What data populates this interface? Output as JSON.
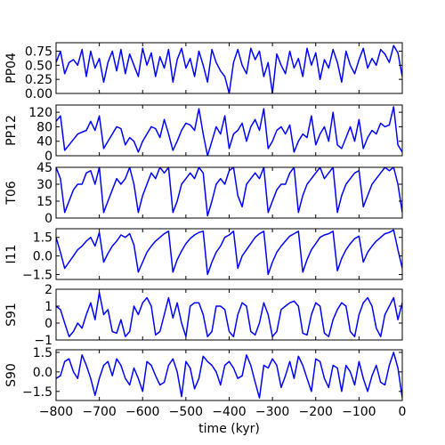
{
  "chart_data": {
    "type": "line",
    "xlabel": "time (kyr)",
    "xlim": [
      -800,
      0
    ],
    "xticks": [
      -800,
      -700,
      -600,
      -500,
      -400,
      -300,
      -200,
      -100,
      0
    ],
    "xtick_labels": [
      "−800",
      "−700",
      "−600",
      "−500",
      "−400",
      "−300",
      "−200",
      "−100",
      "0"
    ],
    "line_color": "#0000ff",
    "grid": false,
    "panels": [
      {
        "ylabel": "PP04",
        "ylim": [
          0,
          0.9
        ],
        "yticks": [
          0,
          0.25,
          0.5,
          0.75
        ],
        "ytick_labels": [
          "0.00",
          "0.25",
          "0.50",
          "0.75"
        ],
        "x": [
          -800,
          -790,
          -780,
          -770,
          -760,
          -750,
          -740,
          -730,
          -720,
          -710,
          -700,
          -690,
          -680,
          -670,
          -660,
          -650,
          -640,
          -630,
          -620,
          -610,
          -600,
          -590,
          -580,
          -570,
          -560,
          -550,
          -540,
          -530,
          -520,
          -510,
          -500,
          -490,
          -480,
          -470,
          -460,
          -450,
          -440,
          -430,
          -420,
          -410,
          -400,
          -390,
          -380,
          -370,
          -360,
          -350,
          -340,
          -330,
          -320,
          -310,
          -300,
          -290,
          -280,
          -270,
          -260,
          -250,
          -240,
          -230,
          -220,
          -210,
          -200,
          -190,
          -180,
          -170,
          -160,
          -150,
          -140,
          -130,
          -120,
          -110,
          -100,
          -90,
          -80,
          -70,
          -60,
          -50,
          -40,
          -30,
          -20,
          -10,
          0
        ],
        "y": [
          0.55,
          0.75,
          0.35,
          0.55,
          0.6,
          0.5,
          0.78,
          0.3,
          0.75,
          0.45,
          0.62,
          0.2,
          0.55,
          0.75,
          0.4,
          0.78,
          0.35,
          0.7,
          0.5,
          0.3,
          0.8,
          0.5,
          0.72,
          0.3,
          0.65,
          0.45,
          0.78,
          0.2,
          0.6,
          0.8,
          0.45,
          0.62,
          0.3,
          0.75,
          0.5,
          0.2,
          0.78,
          0.55,
          0.4,
          0.3,
          0.0,
          0.55,
          0.78,
          0.5,
          0.35,
          0.8,
          0.6,
          0.75,
          0.3,
          0.55,
          0.0,
          0.7,
          0.5,
          0.35,
          0.75,
          0.45,
          0.62,
          0.3,
          0.8,
          0.5,
          0.72,
          0.25,
          0.6,
          0.45,
          0.78,
          0.55,
          0.2,
          0.75,
          0.5,
          0.35,
          0.6,
          0.8,
          0.45,
          0.62,
          0.5,
          0.78,
          0.7,
          0.55,
          0.85,
          0.72,
          0.3
        ]
      },
      {
        "ylabel": "PP12",
        "ylim": [
          0,
          140
        ],
        "yticks": [
          0,
          40,
          80,
          120
        ],
        "ytick_labels": [
          "0",
          "40",
          "80",
          "120"
        ],
        "x": [
          -800,
          -790,
          -780,
          -770,
          -760,
          -750,
          -740,
          -730,
          -720,
          -710,
          -700,
          -690,
          -680,
          -670,
          -660,
          -650,
          -640,
          -630,
          -620,
          -610,
          -600,
          -590,
          -580,
          -570,
          -560,
          -550,
          -540,
          -530,
          -520,
          -510,
          -500,
          -490,
          -480,
          -470,
          -460,
          -450,
          -440,
          -430,
          -420,
          -410,
          -400,
          -390,
          -380,
          -370,
          -360,
          -350,
          -340,
          -330,
          -320,
          -310,
          -300,
          -290,
          -280,
          -270,
          -260,
          -250,
          -240,
          -230,
          -220,
          -210,
          -200,
          -190,
          -180,
          -170,
          -160,
          -150,
          -140,
          -130,
          -120,
          -110,
          -100,
          -90,
          -80,
          -70,
          -60,
          -50,
          -40,
          -30,
          -20,
          -10,
          0
        ],
        "y": [
          95,
          110,
          15,
          30,
          45,
          60,
          65,
          70,
          95,
          70,
          110,
          20,
          40,
          60,
          80,
          75,
          30,
          50,
          40,
          10,
          40,
          60,
          80,
          75,
          50,
          100,
          60,
          15,
          40,
          70,
          90,
          85,
          70,
          130,
          60,
          0,
          40,
          80,
          60,
          110,
          20,
          60,
          70,
          90,
          40,
          80,
          100,
          70,
          130,
          20,
          40,
          70,
          80,
          60,
          85,
          10,
          40,
          60,
          50,
          110,
          30,
          60,
          80,
          40,
          120,
          30,
          20,
          50,
          80,
          40,
          100,
          20,
          50,
          70,
          60,
          90,
          80,
          85,
          135,
          30,
          10
        ]
      },
      {
        "ylabel": "T06",
        "ylim": [
          0,
          45
        ],
        "yticks": [
          0,
          15,
          30,
          45
        ],
        "ytick_labels": [
          "0",
          "15",
          "30",
          "45"
        ],
        "x": [
          -800,
          -790,
          -780,
          -770,
          -760,
          -750,
          -740,
          -730,
          -720,
          -710,
          -700,
          -690,
          -680,
          -670,
          -660,
          -650,
          -640,
          -630,
          -620,
          -610,
          -600,
          -590,
          -580,
          -570,
          -560,
          -550,
          -540,
          -530,
          -520,
          -510,
          -500,
          -490,
          -480,
          -470,
          -460,
          -450,
          -440,
          -430,
          -420,
          -410,
          -400,
          -390,
          -380,
          -370,
          -360,
          -350,
          -340,
          -330,
          -320,
          -310,
          -300,
          -290,
          -280,
          -270,
          -260,
          -250,
          -240,
          -230,
          -220,
          -210,
          -200,
          -190,
          -180,
          -170,
          -160,
          -150,
          -140,
          -130,
          -120,
          -110,
          -100,
          -90,
          -80,
          -70,
          -60,
          -50,
          -40,
          -30,
          -20,
          -10,
          0
        ],
        "y": [
          45,
          35,
          5,
          15,
          25,
          30,
          30,
          40,
          42,
          30,
          45,
          5,
          15,
          25,
          35,
          30,
          35,
          45,
          30,
          5,
          20,
          30,
          40,
          35,
          45,
          40,
          45,
          5,
          15,
          30,
          35,
          40,
          35,
          45,
          40,
          2,
          15,
          30,
          35,
          30,
          42,
          45,
          20,
          10,
          30,
          35,
          40,
          35,
          45,
          5,
          15,
          25,
          30,
          30,
          40,
          45,
          5,
          20,
          30,
          35,
          40,
          45,
          35,
          40,
          45,
          5,
          20,
          30,
          35,
          40,
          42,
          10,
          20,
          30,
          35,
          40,
          45,
          42,
          45,
          30,
          5
        ]
      },
      {
        "ylabel": "I11",
        "ylim": [
          -1.9,
          2.2
        ],
        "yticks": [
          -1.5,
          0,
          1.5
        ],
        "ytick_labels": [
          "−1.5",
          "0.0",
          "1.5"
        ],
        "x": [
          -800,
          -790,
          -780,
          -770,
          -760,
          -750,
          -740,
          -730,
          -720,
          -710,
          -700,
          -690,
          -680,
          -670,
          -660,
          -650,
          -640,
          -630,
          -620,
          -610,
          -600,
          -590,
          -580,
          -570,
          -560,
          -550,
          -540,
          -530,
          -520,
          -510,
          -500,
          -490,
          -480,
          -470,
          -460,
          -450,
          -440,
          -430,
          -420,
          -410,
          -400,
          -390,
          -380,
          -370,
          -360,
          -350,
          -340,
          -330,
          -320,
          -310,
          -300,
          -290,
          -280,
          -270,
          -260,
          -250,
          -240,
          -230,
          -220,
          -210,
          -200,
          -190,
          -180,
          -170,
          -160,
          -150,
          -140,
          -130,
          -120,
          -110,
          -100,
          -90,
          -80,
          -70,
          -60,
          -50,
          -40,
          -30,
          -20,
          -10,
          0
        ],
        "y": [
          1.5,
          0.3,
          -1.0,
          -0.5,
          0.0,
          0.5,
          0.8,
          1.2,
          1.5,
          0.8,
          1.9,
          -0.5,
          0.2,
          0.8,
          1.2,
          1.7,
          1.5,
          1.8,
          0.9,
          -1.3,
          -0.5,
          0.3,
          0.8,
          1.2,
          1.5,
          1.8,
          2.0,
          -1.3,
          -0.3,
          0.4,
          1.0,
          1.4,
          1.7,
          1.9,
          2.0,
          -1.5,
          -0.5,
          0.3,
          0.8,
          1.5,
          1.7,
          2.0,
          -1.0,
          0.0,
          0.5,
          1.0,
          1.5,
          1.8,
          2.0,
          -1.5,
          -0.5,
          0.3,
          0.8,
          1.2,
          1.6,
          1.8,
          2.0,
          -1.3,
          -0.3,
          0.5,
          1.0,
          1.5,
          1.7,
          1.8,
          2.0,
          -1.2,
          -0.2,
          0.5,
          1.0,
          1.4,
          1.6,
          -0.5,
          0.3,
          0.8,
          1.2,
          1.5,
          1.8,
          1.9,
          2.1,
          0.5,
          -1.0
        ]
      },
      {
        "ylabel": "S91",
        "ylim": [
          -1,
          2
        ],
        "yticks": [
          -1,
          0,
          1,
          2
        ],
        "ytick_labels": [
          "−1",
          "0",
          "1",
          "2"
        ],
        "x": [
          -800,
          -790,
          -780,
          -770,
          -760,
          -750,
          -740,
          -730,
          -720,
          -710,
          -700,
          -690,
          -680,
          -670,
          -660,
          -650,
          -640,
          -630,
          -620,
          -610,
          -600,
          -590,
          -580,
          -570,
          -560,
          -550,
          -540,
          -530,
          -520,
          -510,
          -500,
          -490,
          -480,
          -470,
          -460,
          -450,
          -440,
          -430,
          -420,
          -410,
          -400,
          -390,
          -380,
          -370,
          -360,
          -350,
          -340,
          -330,
          -320,
          -310,
          -300,
          -290,
          -280,
          -270,
          -260,
          -250,
          -240,
          -230,
          -220,
          -210,
          -200,
          -190,
          -180,
          -170,
          -160,
          -150,
          -140,
          -130,
          -120,
          -110,
          -100,
          -90,
          -80,
          -70,
          -60,
          -50,
          -40,
          -30,
          -20,
          -10,
          0
        ],
        "y": [
          1.0,
          0.8,
          0.0,
          -0.8,
          -0.5,
          0.0,
          -0.3,
          0.5,
          1.2,
          0.2,
          1.8,
          0.5,
          0.8,
          -0.5,
          -0.6,
          0.2,
          -0.8,
          -0.5,
          1.0,
          0.5,
          1.2,
          1.5,
          1.0,
          -0.7,
          -0.5,
          0.5,
          1.5,
          0.3,
          1.2,
          0.0,
          -0.8,
          1.0,
          1.2,
          1.2,
          0.5,
          -0.8,
          -0.5,
          1.0,
          1.0,
          0.8,
          -0.5,
          -0.8,
          0.5,
          1.2,
          1.0,
          -0.5,
          -0.7,
          0.0,
          1.2,
          0.5,
          -0.8,
          -0.5,
          0.8,
          1.0,
          1.2,
          1.3,
          1.0,
          -0.6,
          -0.7,
          0.5,
          1.2,
          1.0,
          -0.6,
          -0.8,
          0.2,
          0.8,
          1.2,
          1.0,
          -0.5,
          -0.8,
          0.5,
          1.2,
          1.5,
          1.0,
          -0.3,
          -0.8,
          0.5,
          1.0,
          1.5,
          0.2,
          1.2
        ]
      },
      {
        "ylabel": "S90",
        "ylim": [
          -2.2,
          1.7
        ],
        "yticks": [
          -1.5,
          0,
          1.5
        ],
        "ytick_labels": [
          "−1.5",
          "0.0",
          "1.5"
        ],
        "x": [
          -800,
          -790,
          -780,
          -770,
          -760,
          -750,
          -740,
          -730,
          -720,
          -710,
          -700,
          -690,
          -680,
          -670,
          -660,
          -650,
          -640,
          -630,
          -620,
          -610,
          -600,
          -590,
          -580,
          -570,
          -560,
          -550,
          -540,
          -530,
          -520,
          -510,
          -500,
          -490,
          -480,
          -470,
          -460,
          -450,
          -440,
          -430,
          -420,
          -410,
          -400,
          -390,
          -380,
          -370,
          -360,
          -350,
          -340,
          -330,
          -320,
          -310,
          -300,
          -290,
          -280,
          -270,
          -260,
          -250,
          -240,
          -230,
          -220,
          -210,
          -200,
          -190,
          -180,
          -170,
          -160,
          -150,
          -140,
          -130,
          -120,
          -110,
          -100,
          -90,
          -80,
          -70,
          -60,
          -50,
          -40,
          -30,
          -20,
          -10,
          0
        ],
        "y": [
          -0.5,
          -0.3,
          0.8,
          1.0,
          0.0,
          -0.5,
          1.3,
          0.5,
          -0.5,
          -1.8,
          -0.5,
          0.5,
          0.8,
          -0.3,
          1.0,
          0.5,
          -0.5,
          -1.0,
          0.3,
          -0.5,
          -1.5,
          0.8,
          0.5,
          -0.3,
          -1.0,
          -0.8,
          0.5,
          1.0,
          0.0,
          -1.9,
          0.8,
          0.3,
          -1.3,
          -0.5,
          1.2,
          0.8,
          0.5,
          0.0,
          -1.0,
          0.5,
          0.8,
          0.3,
          -0.5,
          -0.3,
          1.3,
          0.5,
          -0.8,
          -2.0,
          0.5,
          0.3,
          1.0,
          0.5,
          -1.2,
          -0.3,
          0.8,
          -0.5,
          1.2,
          0.5,
          -0.5,
          -1.5,
          1.0,
          0.8,
          -0.5,
          -1.2,
          0.5,
          0.3,
          -1.5,
          0.5,
          0.0,
          -1.0,
          0.8,
          -0.5,
          -1.5,
          -0.3,
          0.5,
          -0.8,
          -1.0,
          0.5,
          1.5,
          0.3,
          -2.0
        ]
      }
    ]
  }
}
